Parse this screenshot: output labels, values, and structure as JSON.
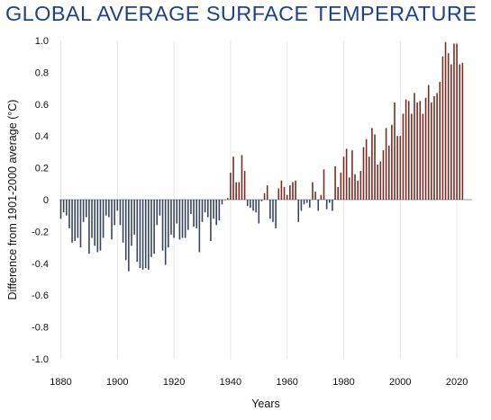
{
  "chart_data": {
    "type": "bar",
    "title": "GLOBAL AVERAGE SURFACE TEMPERATURE",
    "xlabel": "Years",
    "ylabel": "Difference from 1901-2000 average (°C)",
    "xlim": [
      1880,
      2022
    ],
    "ylim": [
      -1.0,
      1.0
    ],
    "x_ticks": [
      "1880",
      "1900",
      "1920",
      "1940",
      "1960",
      "1980",
      "2000",
      "2020"
    ],
    "y_ticks": [
      "1.0",
      "0.8",
      "0.6",
      "0.4",
      "0.2",
      "0",
      "-0.2",
      "-0.4",
      "-0.6",
      "-0.8",
      "-1.0"
    ],
    "grid": "vertical",
    "colors": {
      "negative": "#3a4560",
      "positive": "#7a2e24"
    },
    "x": [
      1880,
      1881,
      1882,
      1883,
      1884,
      1885,
      1886,
      1887,
      1888,
      1889,
      1890,
      1891,
      1892,
      1893,
      1894,
      1895,
      1896,
      1897,
      1898,
      1899,
      1900,
      1901,
      1902,
      1903,
      1904,
      1905,
      1906,
      1907,
      1908,
      1909,
      1910,
      1911,
      1912,
      1913,
      1914,
      1915,
      1916,
      1917,
      1918,
      1919,
      1920,
      1921,
      1922,
      1923,
      1924,
      1925,
      1926,
      1927,
      1928,
      1929,
      1930,
      1931,
      1932,
      1933,
      1934,
      1935,
      1936,
      1937,
      1938,
      1939,
      1940,
      1941,
      1942,
      1943,
      1944,
      1945,
      1946,
      1947,
      1948,
      1949,
      1950,
      1951,
      1952,
      1953,
      1954,
      1955,
      1956,
      1957,
      1958,
      1959,
      1960,
      1961,
      1962,
      1963,
      1964,
      1965,
      1966,
      1967,
      1968,
      1969,
      1970,
      1971,
      1972,
      1973,
      1974,
      1975,
      1976,
      1977,
      1978,
      1979,
      1980,
      1981,
      1982,
      1983,
      1984,
      1985,
      1986,
      1987,
      1988,
      1989,
      1990,
      1991,
      1992,
      1993,
      1994,
      1995,
      1996,
      1997,
      1998,
      1999,
      2000,
      2001,
      2002,
      2003,
      2004,
      2005,
      2006,
      2007,
      2008,
      2009,
      2010,
      2011,
      2012,
      2013,
      2014,
      2015,
      2016,
      2017,
      2018,
      2019,
      2020,
      2021,
      2022
    ],
    "values": [
      -0.12,
      -0.08,
      -0.1,
      -0.18,
      -0.27,
      -0.26,
      -0.24,
      -0.3,
      -0.14,
      -0.11,
      -0.34,
      -0.24,
      -0.29,
      -0.33,
      -0.32,
      -0.24,
      -0.1,
      -0.11,
      -0.25,
      -0.16,
      -0.07,
      -0.16,
      -0.27,
      -0.38,
      -0.45,
      -0.29,
      -0.22,
      -0.39,
      -0.43,
      -0.44,
      -0.43,
      -0.44,
      -0.36,
      -0.34,
      -0.16,
      -0.1,
      -0.32,
      -0.41,
      -0.3,
      -0.22,
      -0.24,
      -0.15,
      -0.25,
      -0.24,
      -0.24,
      -0.19,
      -0.09,
      -0.17,
      -0.18,
      -0.33,
      -0.14,
      -0.08,
      -0.11,
      -0.26,
      -0.12,
      -0.16,
      -0.13,
      -0.03,
      0.0,
      0.01,
      0.17,
      0.27,
      0.11,
      0.11,
      0.28,
      0.18,
      -0.04,
      -0.05,
      -0.07,
      -0.08,
      -0.15,
      -0.01,
      0.04,
      0.09,
      -0.12,
      -0.14,
      -0.18,
      0.07,
      0.12,
      0.08,
      0.03,
      0.09,
      0.11,
      0.12,
      -0.14,
      -0.07,
      -0.03,
      -0.02,
      -0.05,
      0.11,
      0.05,
      -0.07,
      0.03,
      0.19,
      -0.06,
      -0.02,
      -0.07,
      0.21,
      0.08,
      0.17,
      0.27,
      0.32,
      0.14,
      0.31,
      0.16,
      0.12,
      0.18,
      0.33,
      0.38,
      0.27,
      0.45,
      0.41,
      0.22,
      0.24,
      0.31,
      0.45,
      0.34,
      0.47,
      0.61,
      0.4,
      0.4,
      0.54,
      0.63,
      0.62,
      0.54,
      0.67,
      0.61,
      0.62,
      0.54,
      0.64,
      0.72,
      0.61,
      0.65,
      0.67,
      0.74,
      0.9,
      0.99,
      0.92,
      0.85,
      0.98,
      0.98,
      0.85,
      0.86
    ]
  }
}
